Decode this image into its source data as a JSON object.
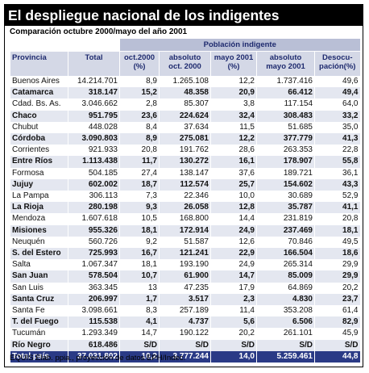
{
  "title": "El despliegue nacional de los indigentes",
  "subtitle": "Comparación octubre 2000/mayo del año 2001",
  "footer": "EQUIS Elab. ppia., proyección de datos EPH/Indec.",
  "colors": {
    "title_bg": "#000000",
    "header_bg": "#d4d8e6",
    "header_text": "#1e2a6e",
    "row_stripe": "#e4e7f0",
    "total_bg": "#2a3a86"
  },
  "chart_data": {
    "type": "table",
    "group_header": "Población indigente",
    "columns": [
      {
        "name": "Provincia"
      },
      {
        "name": "Total"
      },
      {
        "name": "oct.2000",
        "unit": "(%)"
      },
      {
        "name": "absoluto",
        "unit": "oct. 2000"
      },
      {
        "name": "mayo 2001",
        "unit": "(%)"
      },
      {
        "name": "absoluto",
        "unit": "mayo 2001"
      },
      {
        "name": "Desocu-",
        "unit": "pación(%)"
      }
    ],
    "rows": [
      {
        "provincia": "Buenos Aires",
        "total": "14.214.701",
        "oct_pct": "8,9",
        "abs_oct": "1.265.108",
        "may_pct": "12,2",
        "abs_may": "1.737.416",
        "desoc": "49,6",
        "bold": false
      },
      {
        "provincia": "Catamarca",
        "total": "318.147",
        "oct_pct": "15,2",
        "abs_oct": "48.358",
        "may_pct": "20,9",
        "abs_may": "66.412",
        "desoc": "49,4",
        "bold": true
      },
      {
        "provincia": "Cdad. Bs. As.",
        "total": "3.046.662",
        "oct_pct": "2,8",
        "abs_oct": "85.307",
        "may_pct": "3,8",
        "abs_may": "117.154",
        "desoc": "64,0",
        "bold": false
      },
      {
        "provincia": "Chaco",
        "total": "951.795",
        "oct_pct": "23,6",
        "abs_oct": "224.624",
        "may_pct": "32,4",
        "abs_may": "308.483",
        "desoc": "33,2",
        "bold": true
      },
      {
        "provincia": "Chubut",
        "total": "448.028",
        "oct_pct": "8,4",
        "abs_oct": "37.634",
        "may_pct": "11,5",
        "abs_may": "51.685",
        "desoc": "35,0",
        "bold": false
      },
      {
        "provincia": "Córdoba",
        "total": "3.090.803",
        "oct_pct": "8,9",
        "abs_oct": "275.081",
        "may_pct": "12,2",
        "abs_may": "377.779",
        "desoc": "41,3",
        "bold": true
      },
      {
        "provincia": "Corrientes",
        "total": "921.933",
        "oct_pct": "20,8",
        "abs_oct": "191.762",
        "may_pct": "28,6",
        "abs_may": "263.353",
        "desoc": "22,8",
        "bold": false
      },
      {
        "provincia": "Entre Ríos",
        "total": "1.113.438",
        "oct_pct": "11,7",
        "abs_oct": "130.272",
        "may_pct": "16,1",
        "abs_may": "178.907",
        "desoc": "55,8",
        "bold": true
      },
      {
        "provincia": "Formosa",
        "total": "504.185",
        "oct_pct": "27,4",
        "abs_oct": "138.147",
        "may_pct": "37,6",
        "abs_may": "189.721",
        "desoc": "36,1",
        "bold": false
      },
      {
        "provincia": "Jujuy",
        "total": "602.002",
        "oct_pct": "18,7",
        "abs_oct": "112.574",
        "may_pct": "25,7",
        "abs_may": "154.602",
        "desoc": "43,3",
        "bold": true
      },
      {
        "provincia": "La Pampa",
        "total": "306.113",
        "oct_pct": "7,3",
        "abs_oct": "22.346",
        "may_pct": "10,0",
        "abs_may": "30.689",
        "desoc": "52,9",
        "bold": false
      },
      {
        "provincia": "La Rioja",
        "total": "280.198",
        "oct_pct": "9,3",
        "abs_oct": "26.058",
        "may_pct": "12,8",
        "abs_may": "35.787",
        "desoc": "41,1",
        "bold": true
      },
      {
        "provincia": "Mendoza",
        "total": "1.607.618",
        "oct_pct": "10,5",
        "abs_oct": "168.800",
        "may_pct": "14,4",
        "abs_may": "231.819",
        "desoc": "20,8",
        "bold": false
      },
      {
        "provincia": "Misiones",
        "total": "955.326",
        "oct_pct": "18,1",
        "abs_oct": "172.914",
        "may_pct": "24,9",
        "abs_may": "237.469",
        "desoc": "18,1",
        "bold": true
      },
      {
        "provincia": "Neuquén",
        "total": "560.726",
        "oct_pct": "9,2",
        "abs_oct": "51.587",
        "may_pct": "12,6",
        "abs_may": "70.846",
        "desoc": "49,5",
        "bold": false
      },
      {
        "provincia": "S. del Estero",
        "total": "725.993",
        "oct_pct": "16,7",
        "abs_oct": "121.241",
        "may_pct": "22,9",
        "abs_may": "166.504",
        "desoc": "18,6",
        "bold": true
      },
      {
        "provincia": "Salta",
        "total": "1.067.347",
        "oct_pct": "18,1",
        "abs_oct": "193.190",
        "may_pct": "24,9",
        "abs_may": "265.314",
        "desoc": "29,9",
        "bold": false
      },
      {
        "provincia": "San Juan",
        "total": "578.504",
        "oct_pct": "10,7",
        "abs_oct": "61.900",
        "may_pct": "14,7",
        "abs_may": "85.009",
        "desoc": "29,9",
        "bold": true
      },
      {
        "provincia": "San Luis",
        "total": "363.345",
        "oct_pct": "13",
        "abs_oct": "47.235",
        "may_pct": "17,9",
        "abs_may": "64.869",
        "desoc": "20,2",
        "bold": false
      },
      {
        "provincia": "Santa Cruz",
        "total": "206.997",
        "oct_pct": "1,7",
        "abs_oct": "3.517",
        "may_pct": "2,3",
        "abs_may": "4.830",
        "desoc": "23,7",
        "bold": true
      },
      {
        "provincia": "Santa Fe",
        "total": "3.098.661",
        "oct_pct": "8,3",
        "abs_oct": "257.189",
        "may_pct": "11,4",
        "abs_may": "353.208",
        "desoc": "61,4",
        "bold": false
      },
      {
        "provincia": "T. del Fuego",
        "total": "115.538",
        "oct_pct": "4,1",
        "abs_oct": "4.737",
        "may_pct": "5,6",
        "abs_may": "6.506",
        "desoc": "82,9",
        "bold": true
      },
      {
        "provincia": "Tucumán",
        "total": "1.293.349",
        "oct_pct": "14,7",
        "abs_oct": "190.122",
        "may_pct": "20,2",
        "abs_may": "261.101",
        "desoc": "45,9",
        "bold": false
      },
      {
        "provincia": "Río Negro",
        "total": "618.486",
        "oct_pct": "S/D",
        "abs_oct": "S/D",
        "may_pct": "S/D",
        "abs_may": "S/D",
        "desoc": "S/D",
        "bold": true
      }
    ],
    "total_row": {
      "provincia": "Total país",
      "total": "37.031.802",
      "oct_pct": "10,2",
      "abs_oct": "3.777.244",
      "may_pct": "14,0",
      "abs_may": "5.259.461",
      "desoc": "44,8"
    }
  }
}
